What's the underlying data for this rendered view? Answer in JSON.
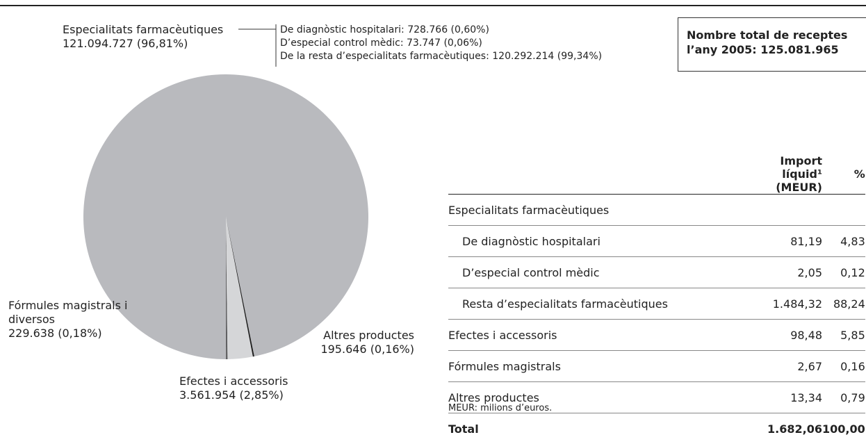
{
  "chart_data": {
    "type": "pie",
    "categories": [
      "Especialitats farmacèutiques",
      "Fórmules magistrals i diversos",
      "Efectes i accessoris",
      "Altres productes"
    ],
    "values": [
      121094727,
      229638,
      3561954,
      195646
    ],
    "value_labels": [
      "121.094.727 (96,81%)",
      "229.638 (0,18%)",
      "3.561.954 (2,85%)",
      "195.646 (0,16%)"
    ],
    "colors": [
      "#b9babe",
      "#5b5b5d",
      "#d5d6d8",
      "#1c1c1c"
    ],
    "annotations": [
      "De diagnòstic hospitalari: 728.766 (0,60%)",
      "D’especial control mèdic: 73.747 (0,06%)",
      "De la resta d’especialitats farmacèutiques: 120.292.214 (99,34%)"
    ]
  },
  "summary_box": [
    "Nombre total de receptes",
    "l’any 2005: 125.081.965"
  ],
  "table": {
    "columns": [
      "Import líquid¹ (MEUR)",
      "%"
    ],
    "rows": [
      {
        "label": "Especialitats farmacèutiques",
        "children": [
          {
            "label": "De diagnòstic hospitalari",
            "cells": [
              "81,19",
              "4,83"
            ]
          },
          {
            "label": "D’especial control mèdic",
            "cells": [
              "2,05",
              "0,12"
            ]
          },
          {
            "label": "Resta d’especialitats farmacèutiques",
            "cells": [
              "1.484,32",
              "88,24"
            ]
          }
        ]
      },
      {
        "label": "Efectes i accessoris",
        "cells": [
          "98,48",
          "5,85"
        ]
      },
      {
        "label": "Fórmules magistrals",
        "cells": [
          "2,67",
          "0,16"
        ]
      },
      {
        "label": "Altres productes",
        "cells": [
          "13,34",
          "0,79"
        ]
      }
    ],
    "total": {
      "label": "Total",
      "cells": [
        "1.682,06",
        "100,00"
      ]
    },
    "footnote": "MEUR: milions d’euros."
  }
}
